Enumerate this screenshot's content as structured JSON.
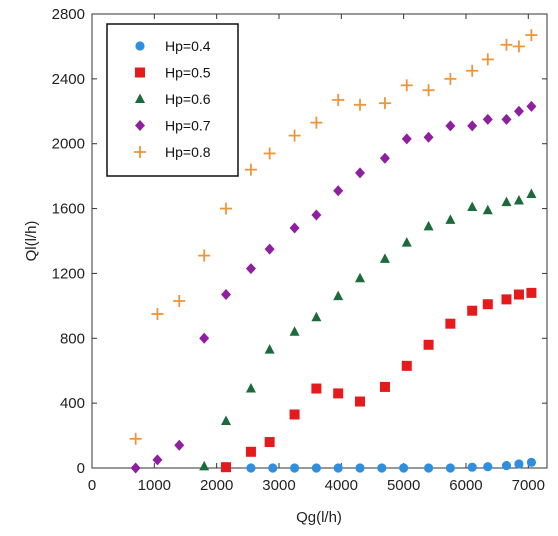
{
  "chart_data": {
    "type": "scatter",
    "xlabel": "Qg(l/h)",
    "ylabel": "Ql(l/h)",
    "xlim": [
      0,
      7300
    ],
    "ylim": [
      0,
      2800
    ],
    "xticks": [
      0,
      1000,
      2000,
      3000,
      4000,
      5000,
      6000,
      7000
    ],
    "yticks": [
      0,
      400,
      800,
      1200,
      1600,
      2000,
      2400,
      2800
    ],
    "grid": false,
    "legend_position": "top-left",
    "series": [
      {
        "name": "Hp=0.4",
        "marker": "circle",
        "color": "#2e8fe0",
        "x": [
          2550,
          2900,
          3250,
          3600,
          3950,
          4300,
          4650,
          5000,
          5400,
          5750,
          6100,
          6350,
          6650,
          6850,
          7050
        ],
        "y": [
          0,
          0,
          0,
          0,
          0,
          0,
          0,
          0,
          0,
          0,
          5,
          8,
          15,
          25,
          35
        ]
      },
      {
        "name": "Hp=0.5",
        "marker": "square",
        "color": "#e41a1c",
        "x": [
          2150,
          2550,
          2850,
          3250,
          3600,
          3950,
          4300,
          4700,
          5050,
          5400,
          5750,
          6100,
          6350,
          6650,
          6850,
          7050
        ],
        "y": [
          5,
          100,
          160,
          330,
          490,
          460,
          410,
          500,
          630,
          760,
          890,
          970,
          1010,
          1040,
          1070,
          1080
        ]
      },
      {
        "name": "Hp=0.6",
        "marker": "triangle",
        "color": "#1b6b3a",
        "x": [
          1800,
          2150,
          2550,
          2850,
          3250,
          3600,
          3950,
          4300,
          4700,
          5050,
          5400,
          5750,
          6100,
          6350,
          6650,
          6850,
          7050
        ],
        "y": [
          10,
          290,
          490,
          730,
          840,
          930,
          1060,
          1170,
          1290,
          1390,
          1490,
          1530,
          1610,
          1590,
          1640,
          1650,
          1690
        ]
      },
      {
        "name": "Hp=0.7",
        "marker": "diamond",
        "color": "#8e1f9e",
        "x": [
          700,
          1050,
          1400,
          1800,
          2150,
          2550,
          2850,
          3250,
          3600,
          3950,
          4300,
          4700,
          5050,
          5400,
          5750,
          6100,
          6350,
          6650,
          6850,
          7050
        ],
        "y": [
          0,
          50,
          140,
          800,
          1070,
          1230,
          1350,
          1480,
          1560,
          1710,
          1820,
          1910,
          2030,
          2040,
          2110,
          2110,
          2150,
          2150,
          2200,
          2230
        ]
      },
      {
        "name": "Hp=0.8",
        "marker": "plus",
        "color": "#f0943a",
        "x": [
          700,
          1050,
          1400,
          1800,
          2150,
          2550,
          2850,
          3250,
          3600,
          3950,
          4300,
          4700,
          5050,
          5400,
          5750,
          6100,
          6350,
          6650,
          6850,
          7050
        ],
        "y": [
          180,
          950,
          1030,
          1310,
          1600,
          1840,
          1940,
          2050,
          2130,
          2270,
          2240,
          2250,
          2360,
          2330,
          2400,
          2450,
          2520,
          2610,
          2600,
          2670
        ]
      }
    ]
  }
}
